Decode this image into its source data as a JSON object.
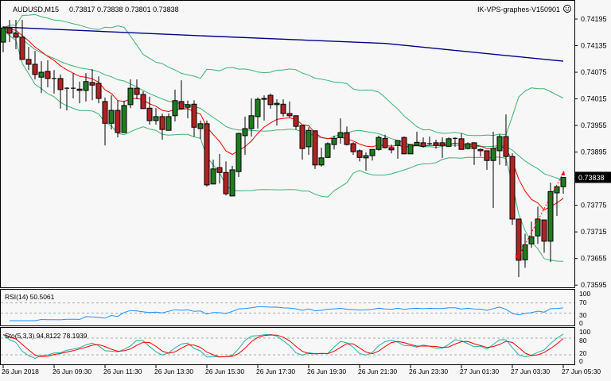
{
  "header": {
    "symbol": "AUDUSD,M15",
    "ohlc_text": "0.73817 0.73838 0.73801 0.73838",
    "expert_name": "IK-VPS-graphes-V150901",
    "expert_icon": "smiley-face-icon"
  },
  "colors": {
    "background": "#f7f7f7",
    "bull_candle": "#1e7d1e",
    "bear_candle": "#b22222",
    "bollinger": "#3cb371",
    "fast_ma": "#ff0000",
    "slow_ma": "#00008b",
    "rsi": "#1e90ff",
    "sto_main": "#20b2aa",
    "sto_signal": "#ff0000",
    "price_box": "#000000"
  },
  "chart_data": [
    {
      "type": "candlestick",
      "title": "AUDUSD,M15",
      "price_axis_ticks": [
        "0.74195",
        "0.74135",
        "0.74075",
        "0.74015",
        "0.73955",
        "0.73895",
        "0.73775",
        "0.73715",
        "0.73655",
        "0.73595"
      ],
      "ylim": [
        0.73595,
        0.74195
      ],
      "current_price": "0.73838",
      "time_axis_ticks": [
        "26 Jun 2018",
        "26 Jun 09:30",
        "26 Jun 11:30",
        "26 Jun 13:30",
        "26 Jun 15:30",
        "26 Jun 17:30",
        "26 Jun 19:30",
        "26 Jun 21:30",
        "26 Jun 23:30",
        "27 Jun 01:30",
        "27 Jun 03:30",
        "27 Jun 05:30"
      ],
      "bars_per_time_tick": 8,
      "ohlc": [
        [
          0.74143,
          0.74179,
          0.7412,
          0.74175
        ],
        [
          0.74174,
          0.74193,
          0.74143,
          0.74163
        ],
        [
          0.74163,
          0.74193,
          0.74127,
          0.74154
        ],
        [
          0.74154,
          0.74193,
          0.74104,
          0.74104
        ],
        [
          0.74104,
          0.74132,
          0.7408,
          0.74093
        ],
        [
          0.74093,
          0.74123,
          0.74059,
          0.7407
        ],
        [
          0.74064,
          0.741,
          0.74028,
          0.74075
        ],
        [
          0.74077,
          0.74102,
          0.74041,
          0.74061
        ],
        [
          0.74061,
          0.7408,
          0.74027,
          0.74061
        ],
        [
          0.74061,
          0.7407,
          0.73993,
          0.74036
        ],
        [
          0.74039,
          0.74041,
          0.73989,
          0.74039
        ],
        [
          0.74039,
          0.74073,
          0.74016,
          0.74039
        ],
        [
          0.74037,
          0.74054,
          0.74005,
          0.74034
        ],
        [
          0.74034,
          0.74073,
          0.74009,
          0.74054
        ],
        [
          0.74052,
          0.74082,
          0.74012,
          0.74046
        ],
        [
          0.7405,
          0.74066,
          0.74005,
          0.74016
        ],
        [
          0.74009,
          0.74018,
          0.7391,
          0.7396
        ],
        [
          0.7396,
          0.74023,
          0.73946,
          0.73989
        ],
        [
          0.73989,
          0.74011,
          0.73928,
          0.73939
        ],
        [
          0.73939,
          0.74011,
          0.73939,
          0.74
        ],
        [
          0.74002,
          0.74059,
          0.73994,
          0.74039
        ],
        [
          0.74039,
          0.74059,
          0.74014,
          0.74025
        ],
        [
          0.74025,
          0.74032,
          0.73993,
          0.73993
        ],
        [
          0.73994,
          0.7402,
          0.73957,
          0.73966
        ],
        [
          0.73966,
          0.73994,
          0.73957,
          0.73975
        ],
        [
          0.73975,
          0.73982,
          0.73923,
          0.73946
        ],
        [
          0.73944,
          0.73982,
          0.73944,
          0.73975
        ],
        [
          0.73977,
          0.74036,
          0.73964,
          0.74011
        ],
        [
          0.74009,
          0.74057,
          0.73991,
          0.73993
        ],
        [
          0.73996,
          0.74011,
          0.73971,
          0.74002
        ],
        [
          0.74003,
          0.74012,
          0.7393,
          0.73951
        ],
        [
          0.73948,
          0.73966,
          0.73925,
          0.73959
        ],
        [
          0.73959,
          0.73966,
          0.73817,
          0.73821
        ],
        [
          0.73823,
          0.73878,
          0.73823,
          0.73857
        ],
        [
          0.7386,
          0.73891,
          0.73824,
          0.73849
        ],
        [
          0.73849,
          0.73874,
          0.73797,
          0.73801
        ],
        [
          0.73796,
          0.73864,
          0.73796,
          0.73855
        ],
        [
          0.73851,
          0.73939,
          0.73839,
          0.73937
        ],
        [
          0.73932,
          0.73975,
          0.73889,
          0.73948
        ],
        [
          0.73948,
          0.74016,
          0.7393,
          0.73977
        ],
        [
          0.73975,
          0.74018,
          0.73948,
          0.74014
        ],
        [
          0.74014,
          0.74023,
          0.73966,
          0.74016
        ],
        [
          0.74023,
          0.74027,
          0.73993,
          0.74002
        ],
        [
          0.74002,
          0.74014,
          0.73955,
          0.74005
        ],
        [
          0.74003,
          0.74014,
          0.73975,
          0.73982
        ],
        [
          0.73982,
          0.74009,
          0.73973,
          0.73977
        ],
        [
          0.73977,
          0.73977,
          0.73946,
          0.73953
        ],
        [
          0.73955,
          0.73955,
          0.73878,
          0.73903
        ],
        [
          0.73907,
          0.73951,
          0.73889,
          0.73944
        ],
        [
          0.73943,
          0.73943,
          0.73857,
          0.73866
        ],
        [
          0.73866,
          0.73905,
          0.73862,
          0.73882
        ],
        [
          0.73883,
          0.73917,
          0.73882,
          0.73914
        ],
        [
          0.73912,
          0.73932,
          0.73901,
          0.73926
        ],
        [
          0.73928,
          0.73971,
          0.73914,
          0.73939
        ],
        [
          0.73939,
          0.73953,
          0.7391,
          0.73912
        ],
        [
          0.73914,
          0.73917,
          0.73889,
          0.73896
        ],
        [
          0.73898,
          0.73901,
          0.73874,
          0.73883
        ],
        [
          0.73882,
          0.73894,
          0.73853,
          0.73887
        ],
        [
          0.73887,
          0.73901,
          0.73876,
          0.73901
        ],
        [
          0.73901,
          0.73932,
          0.73898,
          0.73928
        ],
        [
          0.73926,
          0.73934,
          0.73903,
          0.73905
        ],
        [
          0.73905,
          0.73912,
          0.73892,
          0.739
        ],
        [
          0.7391,
          0.73921,
          0.7388,
          0.73921
        ],
        [
          0.73928,
          0.7393,
          0.73891,
          0.73891
        ],
        [
          0.73891,
          0.73912,
          0.73891,
          0.73912
        ],
        [
          0.7391,
          0.73941,
          0.7391,
          0.73917
        ],
        [
          0.73916,
          0.73928,
          0.73905,
          0.73908
        ],
        [
          0.73914,
          0.7393,
          0.7391,
          0.73914
        ],
        [
          0.73916,
          0.73923,
          0.73903,
          0.7391
        ],
        [
          0.73916,
          0.73928,
          0.73882,
          0.7391
        ],
        [
          0.73908,
          0.73928,
          0.73907,
          0.73925
        ],
        [
          0.73926,
          0.73928,
          0.73907,
          0.73926
        ],
        [
          0.73925,
          0.73937,
          0.73901,
          0.73901
        ],
        [
          0.73903,
          0.73917,
          0.73901,
          0.73914
        ],
        [
          0.73916,
          0.73917,
          0.73866,
          0.73903
        ],
        [
          0.73901,
          0.73903,
          0.73885,
          0.73898
        ],
        [
          0.73898,
          0.73898,
          0.73855,
          0.73876
        ],
        [
          0.73876,
          0.73941,
          0.73769,
          0.73903
        ],
        [
          0.73898,
          0.73935,
          0.73866,
          0.7393
        ],
        [
          0.7393,
          0.7398,
          0.73864,
          0.73885
        ],
        [
          0.73885,
          0.73892,
          0.73731,
          0.73744
        ],
        [
          0.73744,
          0.73744,
          0.73613,
          0.73651
        ],
        [
          0.73652,
          0.73711,
          0.73634,
          0.73686
        ],
        [
          0.73688,
          0.73738,
          0.73679,
          0.73704
        ],
        [
          0.73706,
          0.73772,
          0.73688,
          0.73744
        ],
        [
          0.73742,
          0.73742,
          0.73668,
          0.73694
        ],
        [
          0.73694,
          0.73826,
          0.73647,
          0.73806
        ],
        [
          0.73803,
          0.73817,
          0.73751,
          0.73817
        ],
        [
          0.73817,
          0.73838,
          0.73801,
          0.73838
        ]
      ],
      "slow_ma_samples": {
        "bars": [
          0,
          30,
          60,
          88
        ],
        "values": [
          0.74177,
          0.74158,
          0.7414,
          0.741
        ]
      },
      "bollinger": {
        "period": 20,
        "deviations": 2
      },
      "fast_ma": {
        "period": 10
      },
      "trade_line": {
        "from": {
          "bar": 81,
          "price": 0.7366
        },
        "to": {
          "bar": 88,
          "price": 0.73848
        }
      }
    },
    {
      "type": "line",
      "title": "RSI(14) 50.5061",
      "ylim": [
        0,
        100
      ],
      "tick_labels": [
        "100",
        "70",
        "30",
        "0"
      ],
      "levels": [
        70,
        30
      ]
    },
    {
      "type": "line",
      "title": "Sto(5,3,3) 94.8122 78.1939",
      "ylim": [
        0,
        100
      ],
      "tick_labels": [
        "100",
        "80",
        "20",
        "0"
      ],
      "levels": [
        80,
        20
      ]
    }
  ]
}
